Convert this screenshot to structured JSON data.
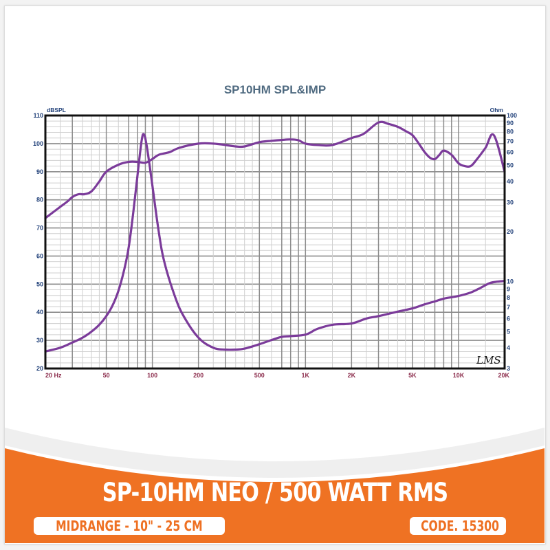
{
  "colors": {
    "orange": "#ef7223",
    "curve": "#7b3b9a",
    "title": "#4f6a80",
    "y_label": "#1f3f78",
    "x_label": "#8a2a4a",
    "grid_major": "#8c8c8c",
    "grid_minor": "#cfcfcf",
    "frame": "#111111",
    "swoosh": "#efefef"
  },
  "product": {
    "title": "SP-10HM NEO / 500 WATT RMS",
    "category": "MIDRANGE - 10\" - 25 CM",
    "code": "CODE. 15300"
  },
  "chart_data": {
    "type": "line",
    "title": "SP10HM SPL&IMP",
    "xlabel": "Hz",
    "ylabel": "dBSPL",
    "y2label": "Ohm",
    "xscale": "log",
    "xlim": [
      20,
      20000
    ],
    "ylim": [
      20,
      110
    ],
    "y2lim": [
      3,
      100
    ],
    "y2scale": "log",
    "grid": true,
    "watermark": "LMS",
    "x_ticks": [
      {
        "value": 20,
        "label": "20  Hz"
      },
      {
        "value": 50,
        "label": "50"
      },
      {
        "value": 100,
        "label": "100"
      },
      {
        "value": 200,
        "label": "200"
      },
      {
        "value": 500,
        "label": "500"
      },
      {
        "value": 1000,
        "label": "1K"
      },
      {
        "value": 2000,
        "label": "2K"
      },
      {
        "value": 5000,
        "label": "5K"
      },
      {
        "value": 10000,
        "label": "10K"
      },
      {
        "value": 20000,
        "label": "20K"
      }
    ],
    "y_ticks": [
      20,
      30,
      40,
      50,
      60,
      70,
      80,
      90,
      100,
      110
    ],
    "y2_ticks": [
      3,
      4,
      5,
      6,
      7,
      8,
      9,
      10,
      20,
      30,
      40,
      50,
      60,
      70,
      80,
      90,
      100
    ],
    "series": [
      {
        "name": "SPL",
        "axis": "left",
        "unit": "dBSPL",
        "x": [
          20,
          25,
          28,
          30,
          33,
          36,
          40,
          45,
          50,
          60,
          70,
          80,
          90,
          100,
          110,
          130,
          150,
          200,
          250,
          300,
          350,
          400,
          500,
          600,
          700,
          800,
          900,
          1000,
          1200,
          1500,
          2000,
          2400,
          3000,
          3500,
          4000,
          4500,
          5000,
          5500,
          6000,
          6500,
          7000,
          7500,
          8000,
          9000,
          10000,
          11000,
          12000,
          13000,
          15000,
          17000,
          20000
        ],
        "values": [
          73.5,
          77.5,
          79.5,
          81,
          82,
          82,
          83,
          86.5,
          90,
          92.5,
          93.5,
          93.5,
          93.2,
          94.5,
          96,
          97,
          98.5,
          100,
          100,
          99.5,
          99,
          99,
          100.5,
          101,
          101.3,
          101.5,
          101.2,
          100,
          99.5,
          99.5,
          102,
          103.5,
          107.5,
          107,
          106,
          104.5,
          103,
          100,
          97,
          95,
          94.5,
          96,
          97.5,
          96,
          93,
          92,
          92,
          94,
          98.5,
          103,
          90
        ]
      },
      {
        "name": "Impedance",
        "axis": "right",
        "unit": "Ohm",
        "x": [
          20,
          25,
          30,
          35,
          40,
          45,
          50,
          55,
          60,
          65,
          70,
          75,
          80,
          85,
          88,
          92,
          100,
          110,
          120,
          140,
          160,
          200,
          250,
          300,
          350,
          400,
          500,
          600,
          700,
          800,
          1000,
          1200,
          1500,
          2000,
          2500,
          3000,
          4000,
          5000,
          6000,
          7000,
          8000,
          10000,
          12000,
          14000,
          16000,
          18000,
          20000
        ],
        "values": [
          3.8,
          4.0,
          4.3,
          4.6,
          5.0,
          5.5,
          6.2,
          7.2,
          8.8,
          11.5,
          16,
          26,
          44,
          70,
          77,
          65,
          38,
          20,
          13,
          8.2,
          6.2,
          4.6,
          4.0,
          3.9,
          3.9,
          3.95,
          4.2,
          4.45,
          4.65,
          4.7,
          4.8,
          5.2,
          5.5,
          5.6,
          6.0,
          6.2,
          6.6,
          6.9,
          7.3,
          7.6,
          7.9,
          8.2,
          8.6,
          9.2,
          9.8,
          10.0,
          10.1
        ]
      }
    ]
  }
}
